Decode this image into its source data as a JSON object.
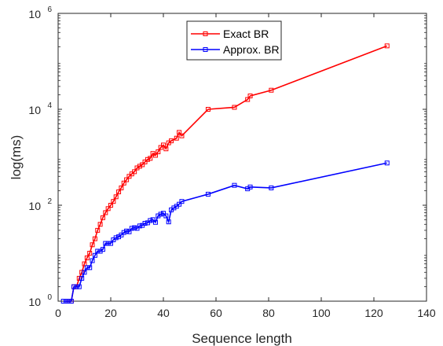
{
  "chart_data": {
    "type": "line",
    "xlabel": "Sequence length",
    "ylabel": "log(ms)",
    "xlim": [
      0,
      140
    ],
    "ylim": [
      1,
      1000000
    ],
    "y_scale": "log",
    "x_ticks": [
      0,
      20,
      40,
      60,
      80,
      100,
      120,
      140
    ],
    "x_tick_labels": [
      "0",
      "20",
      "40",
      "60",
      "80",
      "100",
      "120",
      "140"
    ],
    "y_ticks": [
      1,
      100,
      10000,
      1000000
    ],
    "y_tick_labels": [
      {
        "base": "10",
        "exp": "0"
      },
      {
        "base": "10",
        "exp": "2"
      },
      {
        "base": "10",
        "exp": "4"
      },
      {
        "base": "10",
        "exp": "6"
      }
    ],
    "grid": false,
    "legend_position": "top-center",
    "series": [
      {
        "name": "Exact BR",
        "color": "#ff0000",
        "marker": "square",
        "x": [
          3,
          4,
          5,
          6,
          7,
          8,
          9,
          10,
          11,
          12,
          13,
          14,
          15,
          16,
          17,
          18,
          19,
          20,
          21,
          22,
          23,
          24,
          25,
          26,
          27,
          28,
          29,
          30,
          31,
          32,
          33,
          34,
          35,
          36,
          37,
          38,
          39,
          40,
          41,
          42,
          43,
          45,
          46,
          47,
          57,
          67,
          72,
          73,
          81,
          125
        ],
        "y": [
          1,
          1,
          1,
          2,
          2,
          3,
          4,
          6,
          8,
          10,
          15,
          20,
          30,
          40,
          55,
          70,
          85,
          100,
          120,
          150,
          190,
          230,
          290,
          340,
          400,
          450,
          500,
          600,
          650,
          700,
          800,
          900,
          950,
          1200,
          1100,
          1300,
          1600,
          1800,
          1500,
          2000,
          2200,
          2500,
          3300,
          2800,
          10000,
          11000,
          16000,
          19000,
          25000,
          210000
        ]
      },
      {
        "name": "Approx. BR",
        "color": "#0000ff",
        "marker": "square",
        "x": [
          2,
          3,
          4,
          5,
          6,
          7,
          8,
          9,
          10,
          11,
          12,
          13,
          14,
          15,
          16,
          17,
          18,
          19,
          20,
          21,
          22,
          23,
          24,
          25,
          26,
          27,
          28,
          29,
          30,
          31,
          32,
          33,
          34,
          35,
          36,
          37,
          38,
          39,
          40,
          41,
          42,
          43,
          44,
          45,
          46,
          47,
          57,
          67,
          72,
          73,
          81,
          125
        ],
        "y": [
          1,
          1,
          1,
          1,
          2,
          2,
          2,
          3,
          4,
          5,
          5,
          7,
          9,
          11,
          11,
          12,
          16,
          16,
          16,
          19,
          21,
          22,
          24,
          27,
          29,
          28,
          33,
          34,
          33,
          37,
          38,
          42,
          43,
          48,
          50,
          44,
          60,
          65,
          68,
          60,
          45,
          80,
          88,
          95,
          105,
          120,
          170,
          260,
          220,
          240,
          230,
          760
        ]
      }
    ]
  }
}
